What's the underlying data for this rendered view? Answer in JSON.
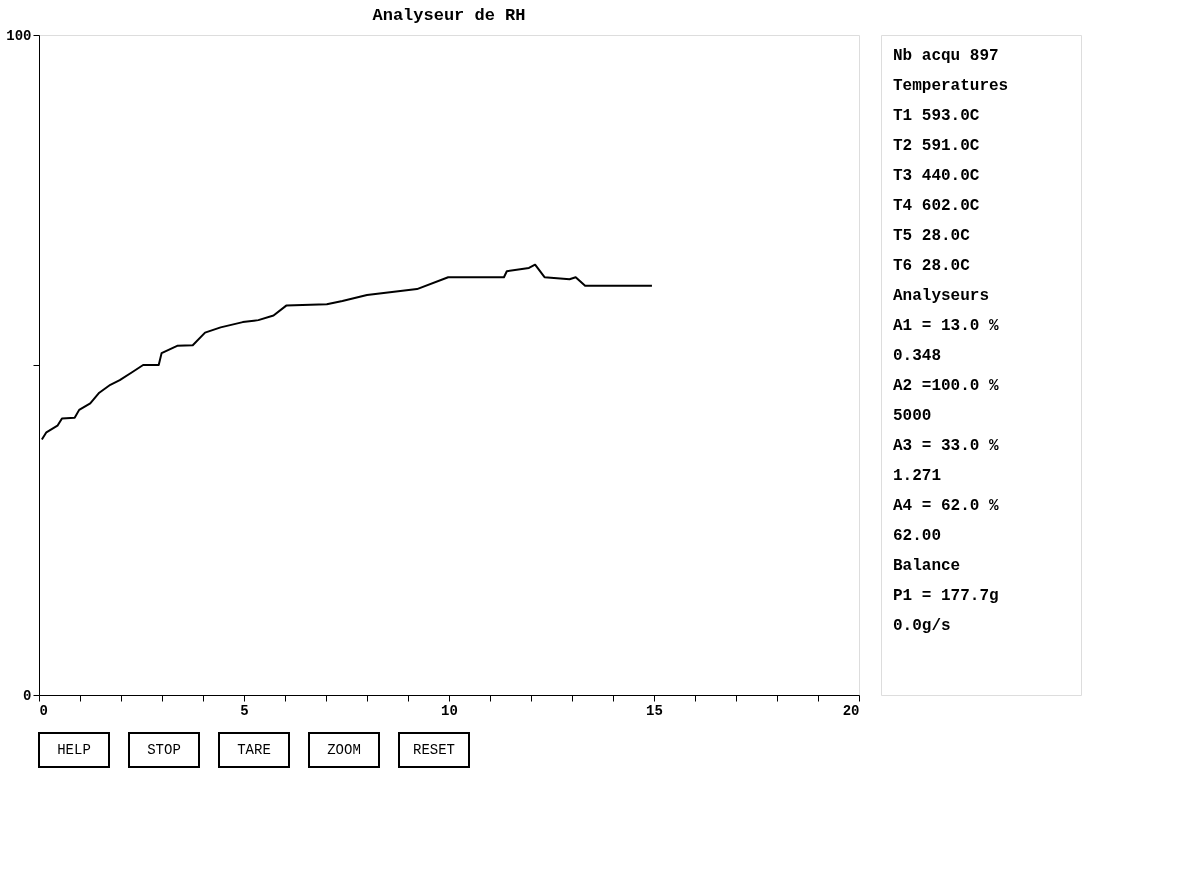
{
  "chart_data": {
    "type": "line",
    "title": "Analyseur de RH",
    "x": [
      0.07,
      0.18,
      0.45,
      0.56,
      0.87,
      0.98,
      1.25,
      1.47,
      1.74,
      1.97,
      2.27,
      2.54,
      2.92,
      2.99,
      3.37,
      3.75,
      4.05,
      4.43,
      4.97,
      5.35,
      5.72,
      6.03,
      7.02,
      7.4,
      8.0,
      9.22,
      9.98,
      11.34,
      11.41,
      11.95,
      12.1,
      12.33,
      12.94,
      13.09,
      13.32,
      14.95
    ],
    "series": [
      {
        "color": "#000000",
        "values": [
          38.7,
          39.8,
          40.8,
          41.9,
          42.0,
          43.2,
          44.2,
          45.8,
          47.0,
          47.7,
          48.9,
          50.0,
          50.0,
          51.8,
          52.9,
          53.0,
          54.9,
          55.7,
          56.5,
          56.8,
          57.5,
          59.0,
          59.2,
          59.7,
          60.6,
          61.5,
          63.3,
          63.3,
          64.2,
          64.7,
          65.2,
          63.3,
          63.0,
          63.3,
          62.0,
          62.0
        ]
      }
    ],
    "xlim": [
      0,
      20
    ],
    "xticks": [
      0,
      {
        "value": 1,
        "label": null
      },
      {
        "value": 2,
        "label": null
      },
      {
        "value": 3,
        "label": null
      },
      {
        "value": 4,
        "label": null
      },
      5,
      {
        "value": 6,
        "label": null
      },
      {
        "value": 7,
        "label": null
      },
      {
        "value": 8,
        "label": null
      },
      {
        "value": 9,
        "label": null
      },
      10,
      {
        "value": 11,
        "label": null
      },
      {
        "value": 12,
        "label": null
      },
      {
        "value": 13,
        "label": null
      },
      {
        "value": 14,
        "label": null
      },
      15,
      {
        "value": 16,
        "label": null
      },
      {
        "value": 17,
        "label": null
      },
      {
        "value": 18,
        "label": null
      },
      {
        "value": 19,
        "label": null
      },
      20
    ],
    "ylim": [
      0,
      100
    ],
    "yticks": [
      0,
      {
        "value": 50,
        "label": null
      },
      100
    ],
    "grid": false,
    "marker": "none",
    "line_style": "solid",
    "annotations": [
      "Nb acqu 897",
      "Temperatures",
      "T1 593.0C",
      "T2 591.0C",
      "T3 440.0C",
      "T4 602.0C",
      "T5 28.0C",
      "T6 28.0C",
      "Analyseurs",
      "A1 = 13.0 %",
      "0.348",
      "A2 =100.0 %",
      "5000",
      "A3 = 33.0 %",
      "1.271",
      "A4 = 62.0 %",
      "62.00",
      "Balance",
      "P1 = 177.7g",
      "0.0g/s",
      "HELP",
      "STOP",
      "TARE",
      "ZOOM",
      "RESET"
    ]
  }
}
